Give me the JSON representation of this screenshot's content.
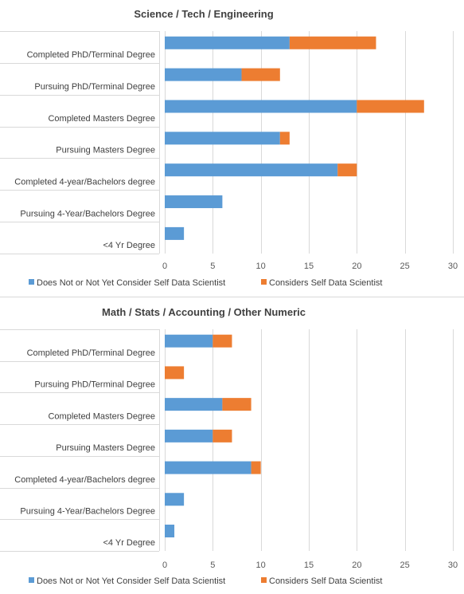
{
  "chart_data": [
    {
      "type": "bar",
      "orientation": "horizontal",
      "stacked": true,
      "title": "Science / Tech / Engineering",
      "categories": [
        "Completed PhD/Terminal Degree",
        "Pursuing PhD/Terminal Degree",
        "Completed Masters Degree",
        "Pursuing Masters Degree",
        "Completed 4-year/Bachelors degree",
        "Pursuing 4-Year/Bachelors Degree",
        "<4 Yr Degree"
      ],
      "series": [
        {
          "name": "Does Not or Not Yet Consider Self Data Scientist",
          "color": "#5B9BD5",
          "values": [
            13,
            8,
            20,
            12,
            18,
            6,
            2
          ]
        },
        {
          "name": "Considers Self Data Scientist",
          "color": "#ED7D31",
          "values": [
            9,
            4,
            7,
            1,
            2,
            0,
            0
          ]
        }
      ],
      "xlim": [
        0,
        30
      ],
      "xticks": [
        0,
        5,
        10,
        15,
        20,
        25,
        30
      ],
      "grid": true,
      "legend": "bottom"
    },
    {
      "type": "bar",
      "orientation": "horizontal",
      "stacked": true,
      "title": "Math / Stats / Accounting / Other Numeric",
      "categories": [
        "Completed PhD/Terminal Degree",
        "Pursuing PhD/Terminal Degree",
        "Completed Masters Degree",
        "Pursuing Masters Degree",
        "Completed 4-year/Bachelors degree",
        "Pursuing 4-Year/Bachelors Degree",
        "<4 Yr Degree"
      ],
      "series": [
        {
          "name": "Does Not or Not Yet Consider Self Data Scientist",
          "color": "#5B9BD5",
          "values": [
            5,
            0,
            6,
            5,
            9,
            2,
            1
          ]
        },
        {
          "name": "Considers Self Data Scientist",
          "color": "#ED7D31",
          "values": [
            2,
            2,
            3,
            2,
            1,
            0,
            0
          ]
        }
      ],
      "xlim": [
        0,
        30
      ],
      "xticks": [
        0,
        5,
        10,
        15,
        20,
        25,
        30
      ],
      "grid": true,
      "legend": "bottom"
    }
  ]
}
